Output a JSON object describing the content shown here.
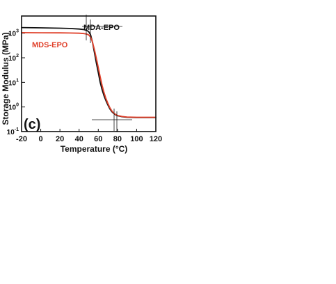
{
  "chart_data": {
    "type": "line",
    "panel_label": "(c)",
    "xlabel": "Temperature (°C)",
    "ylabel": "Storage Modulus (MPa)",
    "xlim": [
      -20,
      120
    ],
    "ylim": [
      0.1,
      5000
    ],
    "y_scale": "log",
    "x_ticks": [
      -20,
      0,
      20,
      40,
      60,
      80,
      100,
      120
    ],
    "y_ticks": [
      {
        "value": 1000,
        "mantissa": "10",
        "exp": "3"
      },
      {
        "value": 100,
        "mantissa": "10",
        "exp": "2"
      },
      {
        "value": 10,
        "mantissa": "10",
        "exp": "1"
      },
      {
        "value": 1,
        "mantissa": "10",
        "exp": "0"
      },
      {
        "value": 0.1,
        "mantissa": "10",
        "exp": "-1"
      }
    ],
    "grid": false,
    "series": [
      {
        "name": "MDA-EPO",
        "color": "#111111",
        "x": [
          -20,
          0,
          20,
          30,
          40,
          45,
          48,
          50,
          52,
          54,
          56,
          58,
          60,
          62,
          64,
          66,
          68,
          70,
          72,
          74,
          76,
          78,
          80,
          85,
          90,
          100,
          110,
          120
        ],
        "y": [
          1700,
          1650,
          1600,
          1560,
          1480,
          1400,
          1300,
          1150,
          850,
          420,
          160,
          62,
          25,
          10,
          5,
          2.8,
          1.8,
          1.2,
          0.85,
          0.65,
          0.55,
          0.48,
          0.44,
          0.4,
          0.38,
          0.37,
          0.37,
          0.37
        ]
      },
      {
        "name": "MDS-EPO",
        "color": "#e0402a",
        "x": [
          -20,
          0,
          20,
          30,
          40,
          45,
          48,
          50,
          52,
          54,
          56,
          58,
          60,
          62,
          64,
          66,
          68,
          70,
          72,
          74,
          76,
          78,
          80,
          85,
          90,
          100,
          110,
          120
        ],
        "y": [
          1050,
          1040,
          1030,
          1020,
          1000,
          970,
          920,
          850,
          700,
          430,
          210,
          95,
          40,
          17,
          7.5,
          3.8,
          2.2,
          1.4,
          0.95,
          0.7,
          0.57,
          0.5,
          0.45,
          0.41,
          0.39,
          0.38,
          0.38,
          0.38
        ]
      }
    ]
  }
}
